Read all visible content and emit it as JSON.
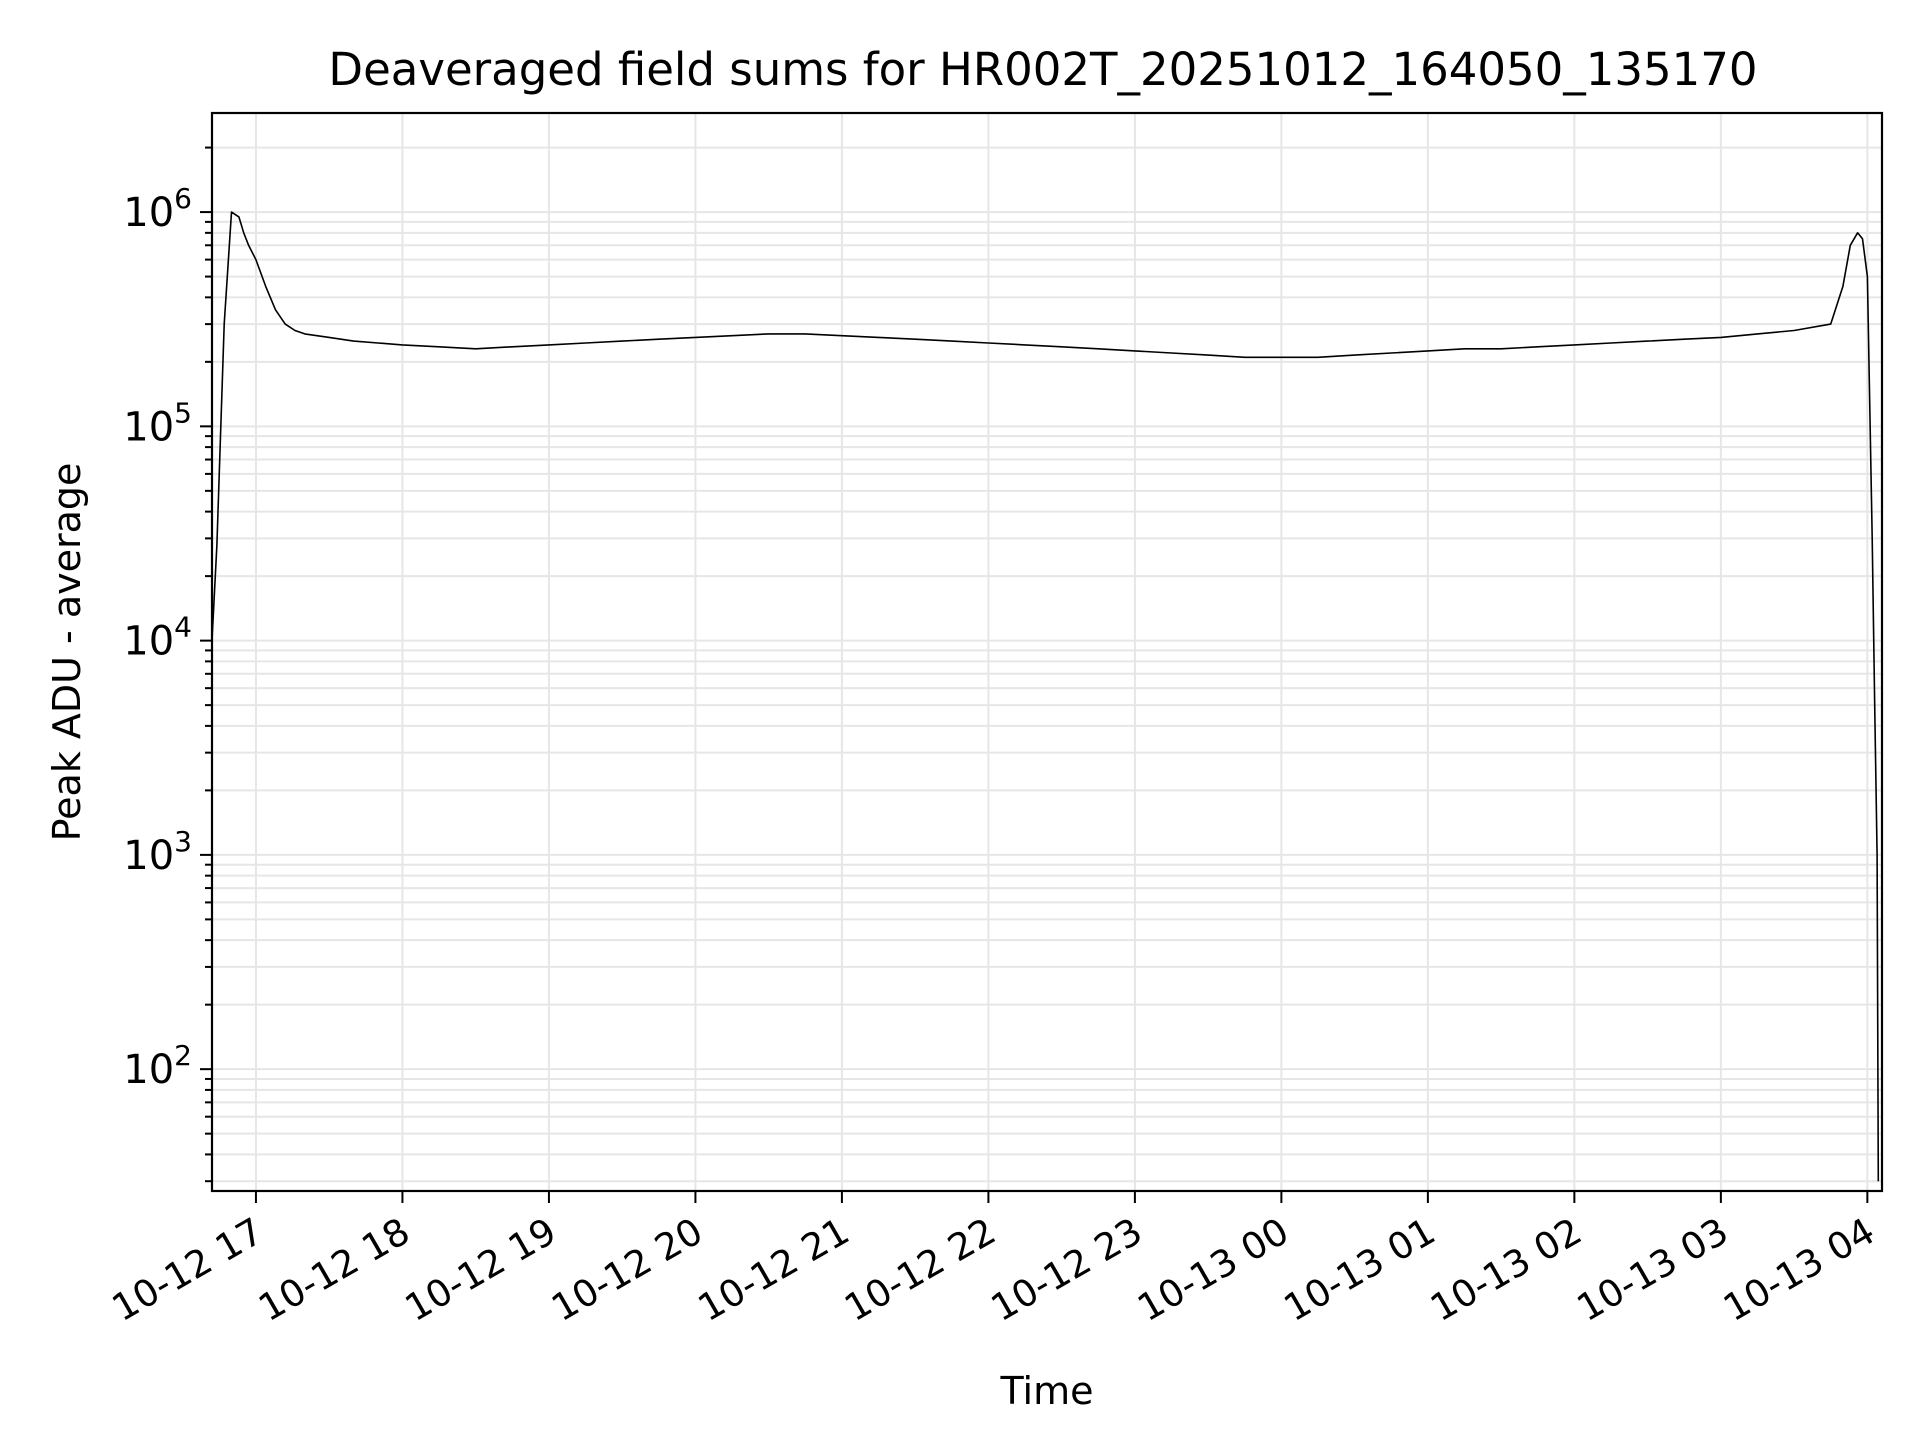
{
  "chart_data": {
    "type": "line",
    "title": "Deaveraged field sums for HR002T_20251012_164050_135170",
    "xlabel": "Time",
    "ylabel": "Peak ADU - average",
    "yscale": "log",
    "ylim": [
      27,
      2900000
    ],
    "xlim": [
      "2025-10-12 16:42",
      "2025-10-13 04:06"
    ],
    "x_ticks": [
      "2025-10-12 17:00",
      "2025-10-12 18:00",
      "2025-10-12 19:00",
      "2025-10-12 20:00",
      "2025-10-12 21:00",
      "2025-10-12 22:00",
      "2025-10-12 23:00",
      "2025-10-13 00:00",
      "2025-10-13 01:00",
      "2025-10-13 02:00",
      "2025-10-13 03:00",
      "2025-10-13 04:00"
    ],
    "x_tick_labels": [
      "10-12 17",
      "10-12 18",
      "10-12 19",
      "10-12 20",
      "10-12 21",
      "10-12 22",
      "10-12 23",
      "10-13 00",
      "10-13 01",
      "10-13 02",
      "10-13 03",
      "10-13 04"
    ],
    "y_ticks": [
      100,
      1000,
      10000,
      100000,
      1000000
    ],
    "y_tick_labels": [
      {
        "base": "10",
        "exp": "2"
      },
      {
        "base": "10",
        "exp": "3"
      },
      {
        "base": "10",
        "exp": "4"
      },
      {
        "base": "10",
        "exp": "5"
      },
      {
        "base": "10",
        "exp": "6"
      }
    ],
    "grid": true,
    "series": [
      {
        "color": "#000000",
        "x": [
          "2025-10-12 16:42",
          "2025-10-12 16:44",
          "2025-10-12 16:47",
          "2025-10-12 16:50",
          "2025-10-12 16:53",
          "2025-10-12 16:55",
          "2025-10-12 16:57",
          "2025-10-12 17:00",
          "2025-10-12 17:04",
          "2025-10-12 17:08",
          "2025-10-12 17:12",
          "2025-10-12 17:16",
          "2025-10-12 17:20",
          "2025-10-12 17:30",
          "2025-10-12 17:40",
          "2025-10-12 17:50",
          "2025-10-12 18:00",
          "2025-10-12 18:15",
          "2025-10-12 18:30",
          "2025-10-12 18:45",
          "2025-10-12 19:00",
          "2025-10-12 19:15",
          "2025-10-12 19:30",
          "2025-10-12 19:45",
          "2025-10-12 20:00",
          "2025-10-12 20:15",
          "2025-10-12 20:30",
          "2025-10-12 20:45",
          "2025-10-12 21:00",
          "2025-10-12 21:15",
          "2025-10-12 21:30",
          "2025-10-12 21:45",
          "2025-10-12 22:00",
          "2025-10-12 22:15",
          "2025-10-12 22:30",
          "2025-10-12 22:45",
          "2025-10-12 23:00",
          "2025-10-12 23:15",
          "2025-10-12 23:30",
          "2025-10-12 23:45",
          "2025-10-13 00:00",
          "2025-10-13 00:15",
          "2025-10-13 00:30",
          "2025-10-13 00:45",
          "2025-10-13 01:00",
          "2025-10-13 01:15",
          "2025-10-13 01:30",
          "2025-10-13 01:45",
          "2025-10-13 02:00",
          "2025-10-13 02:15",
          "2025-10-13 02:30",
          "2025-10-13 02:45",
          "2025-10-13 03:00",
          "2025-10-13 03:15",
          "2025-10-13 03:30",
          "2025-10-13 03:45",
          "2025-10-13 03:50",
          "2025-10-13 03:53",
          "2025-10-13 03:56",
          "2025-10-13 03:58",
          "2025-10-13 04:00",
          "2025-10-13 04:02",
          "2025-10-13 04:03",
          "2025-10-13 04:04",
          "2025-10-13 04:04:30"
        ],
        "y": [
          10000,
          28000,
          300000,
          1000000,
          950000,
          800000,
          700000,
          600000,
          450000,
          350000,
          300000,
          280000,
          270000,
          260000,
          250000,
          245000,
          240000,
          235000,
          230000,
          235000,
          240000,
          245000,
          250000,
          255000,
          260000,
          265000,
          270000,
          270000,
          265000,
          260000,
          255000,
          250000,
          245000,
          240000,
          235000,
          230000,
          225000,
          220000,
          215000,
          210000,
          210000,
          210000,
          215000,
          220000,
          225000,
          230000,
          230000,
          235000,
          240000,
          245000,
          250000,
          255000,
          260000,
          270000,
          280000,
          300000,
          450000,
          700000,
          800000,
          750000,
          500000,
          30000,
          5000,
          1000,
          30
        ]
      }
    ]
  }
}
